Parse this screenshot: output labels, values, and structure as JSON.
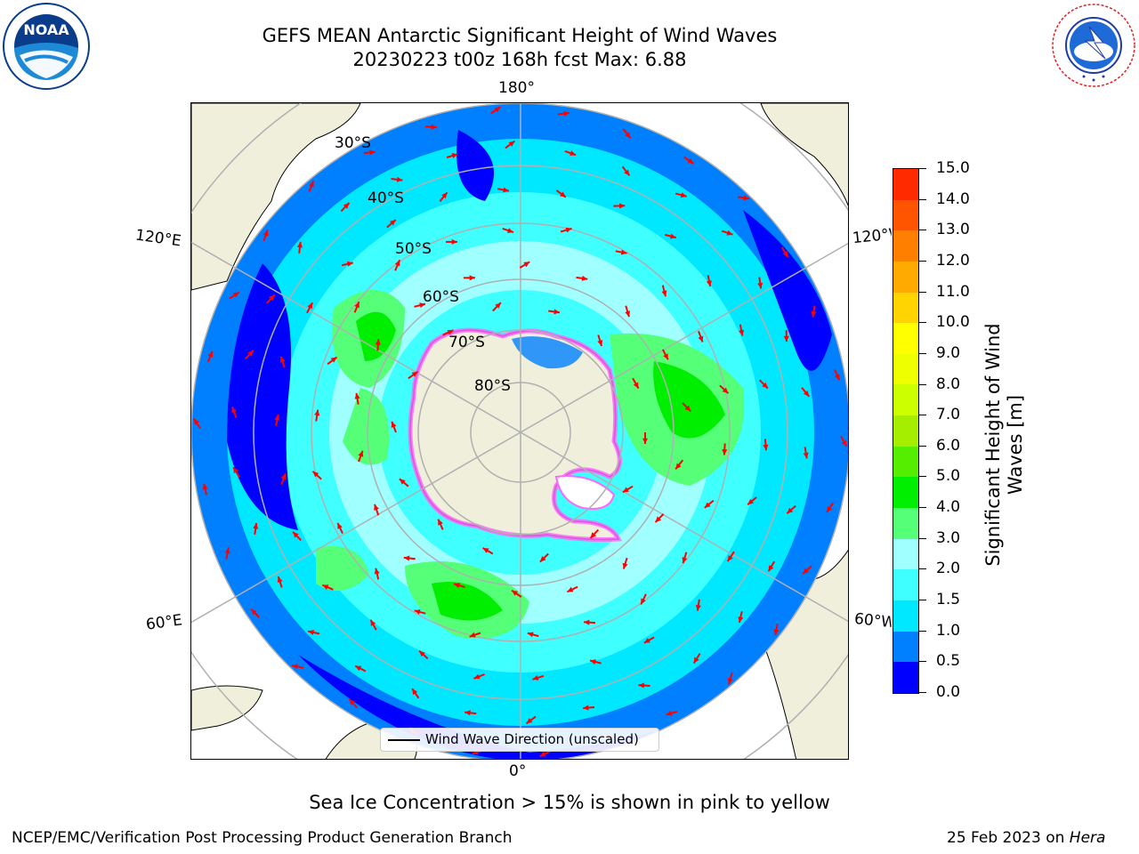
{
  "title": {
    "line1": "GEFS MEAN Antarctic Significant Height of Wind Waves",
    "line2": "20230223 t00z 168h fcst   Max: 6.88"
  },
  "logos": {
    "left": {
      "name": "NOAA",
      "ring_text": "NATIONAL OCEANIC AND ATMOSPHERIC ADMINISTRATION",
      "bottom_text": "U.S. DEPARTMENT OF COMMERCE",
      "color": "#0a3c8c"
    },
    "right": {
      "ring_text": "NATIONAL WEATHER SERVICE",
      "color": "#e02020"
    }
  },
  "map": {
    "projection": "south-polar-stereographic",
    "lat_labels": [
      "30°S",
      "40°S",
      "50°S",
      "60°S",
      "70°S",
      "80°S"
    ],
    "lon_labels": {
      "top": "180°",
      "bottom": "0°",
      "upper_left": "120°E",
      "lower_left": "60°E",
      "upper_right": "120°W",
      "lower_right": "60°W"
    },
    "land_color": "#efefdb",
    "grid_color": "#b0b0b0",
    "arrow_color": "#ff0000",
    "sea_ice_colors": [
      "#ff66ff",
      "#ffb0ff",
      "#ffee66"
    ],
    "wave_height_regions": [
      {
        "name": "Indian Ocean sector maximum",
        "color": "#33cc33",
        "level_m": 4.5
      },
      {
        "name": "South Pacific maximum",
        "color": "#33ee33",
        "level_m": 4.5
      },
      {
        "name": "Southern Indian Ocean maximum",
        "color": "#33dd33",
        "level_m": 4.5
      }
    ]
  },
  "legend": {
    "label": "Wind Wave Direction (unscaled)"
  },
  "colorbar": {
    "label": "Significant Height of Wind Waves [m]",
    "ticks": [
      "0.0",
      "0.5",
      "1.0",
      "1.5",
      "2.0",
      "3.0",
      "4.0",
      "5.0",
      "6.0",
      "7.0",
      "8.0",
      "9.0",
      "10.0",
      "11.0",
      "12.0",
      "13.0",
      "14.0",
      "15.0"
    ],
    "colors": [
      "#0000ff",
      "#0080ff",
      "#00e8ff",
      "#40ffff",
      "#a0ffff",
      "#55ff77",
      "#00ee00",
      "#55ee00",
      "#a6ee00",
      "#ccff00",
      "#eeff00",
      "#ffff00",
      "#ffd400",
      "#ffaa00",
      "#ff8000",
      "#ff5500",
      "#ff2a00"
    ]
  },
  "note": "Sea Ice Concentration > 15% is shown in pink to yellow",
  "footer": {
    "left": "NCEP/EMC/Verification Post Processing Product Generation Branch",
    "right_prefix": "25 Feb 2023 on ",
    "right_host": "Hera"
  }
}
